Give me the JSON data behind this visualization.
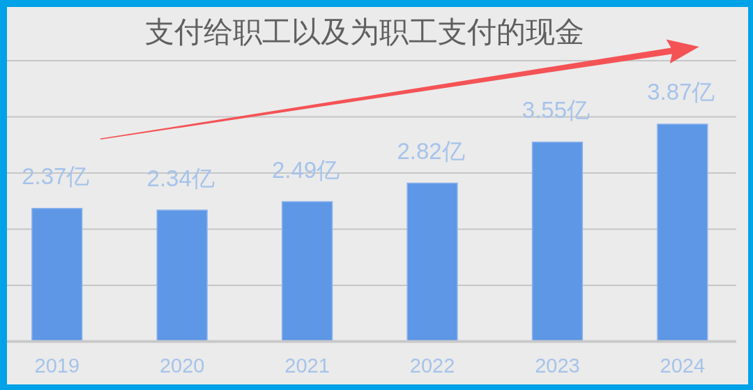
{
  "chart_data": {
    "type": "bar",
    "title": "支付给职工以及为职工支付的现金",
    "categories": [
      "2019",
      "2020",
      "2021",
      "2022",
      "2023",
      "2024"
    ],
    "values": [
      2.37,
      2.34,
      2.49,
      2.82,
      3.55,
      3.87
    ],
    "color": "#5d97e6",
    "value_labels": [
      "2.37亿",
      "2.34亿",
      "2.49亿",
      "2.82亿",
      "3.55亿",
      "3.87亿"
    ],
    "ylim": [
      0,
      5
    ],
    "yticks": [
      {
        "value": 0,
        "label": null
      },
      {
        "value": 1,
        "label": null
      },
      {
        "value": 2,
        "label": null
      },
      {
        "value": 3,
        "label": null
      },
      {
        "value": 4,
        "label": null
      },
      {
        "value": 5,
        "label": null
      }
    ],
    "grid": "y",
    "tick_labels": "x"
  }
}
